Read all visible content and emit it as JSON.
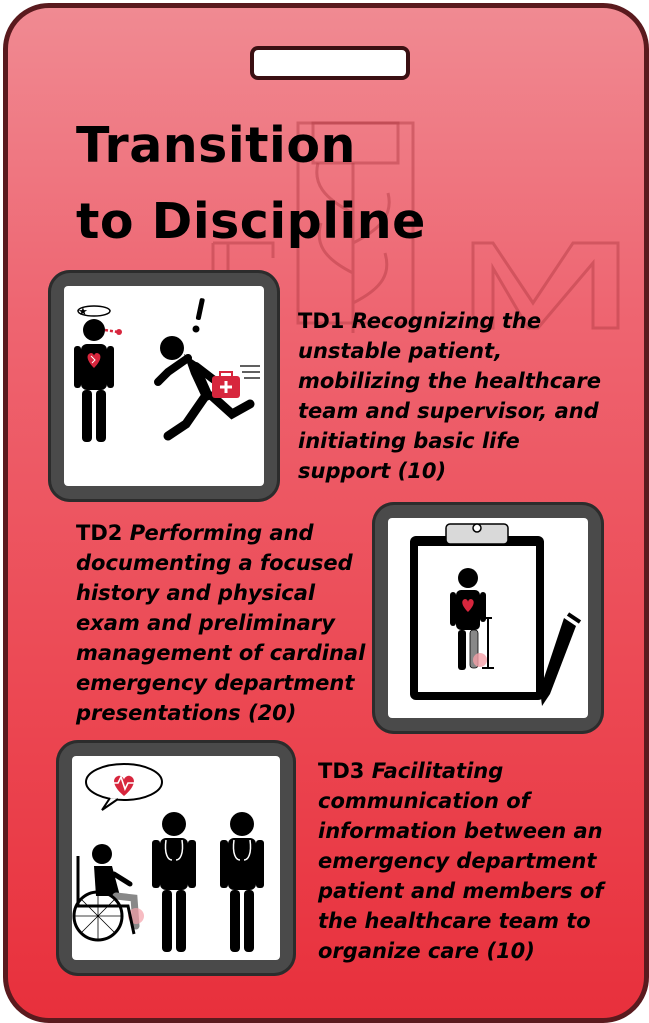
{
  "badge": {
    "title_line1": "Transition",
    "title_line2": "to Discipline"
  },
  "items": [
    {
      "code": "TD1",
      "text": "Recognizing the unstable patient, mobilizing the healthcare team and supervisor, and initiating basic life support",
      "count": "(10)"
    },
    {
      "code": "TD2",
      "text": "Performing and documenting a focused history and physical exam and preliminary management of cardinal emergency department presentations",
      "count": "(20)"
    },
    {
      "code": "TD3",
      "text": "Facilitating communication of information between an emergency department patient and members of the healthcare team to organize care",
      "count": "(10)"
    }
  ],
  "colors": {
    "badge_top": "#f08a92",
    "badge_bottom": "#e8303c",
    "border": "#5a1a1e",
    "heart": "#d7263d"
  },
  "icons": [
    "unstable-patient-icon",
    "running-responder-icon",
    "clipboard-exam-icon",
    "pen-icon",
    "wheelchair-patient-icon",
    "physician-icon",
    "heart-speech-bubble-icon"
  ]
}
